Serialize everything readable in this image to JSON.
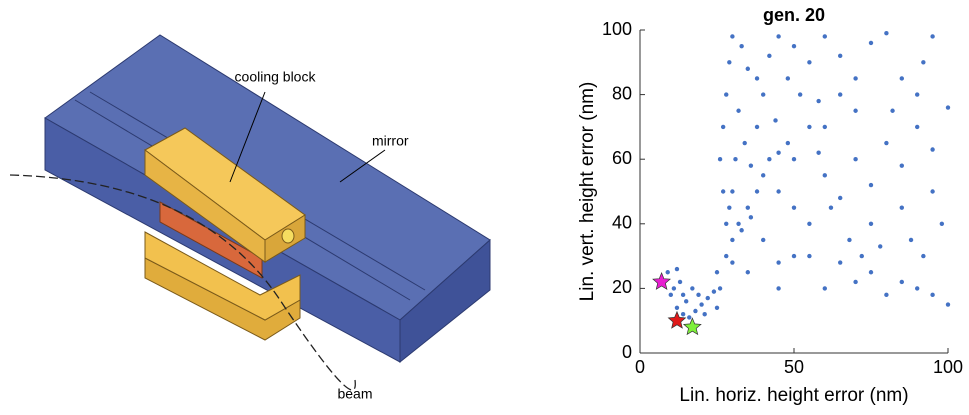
{
  "diagram": {
    "labels": [
      "cooling block",
      "mirror",
      "beam"
    ]
  },
  "chart_data": {
    "type": "scatter",
    "title": "gen. 20",
    "x_label": "Lin. horiz. height error (nm)",
    "y_label": "Lin. vert. height error (nm)",
    "xlim": [
      0,
      100
    ],
    "ylim": [
      0,
      100
    ],
    "xticks": [
      0,
      50,
      100
    ],
    "yticks": [
      0,
      20,
      40,
      60,
      80,
      100
    ],
    "grid": false,
    "series": [
      {
        "color": "#4472c4",
        "marker": "dot",
        "x": [
          12,
          14,
          15,
          16,
          18,
          20,
          22,
          14,
          17,
          19,
          24,
          26,
          13,
          11,
          21,
          25,
          25,
          28,
          30,
          32,
          35,
          38,
          40,
          42,
          45,
          48,
          30,
          33,
          36,
          28,
          27,
          26,
          27,
          28,
          29,
          30,
          33,
          35,
          32,
          34,
          38,
          40,
          42,
          45,
          50,
          55,
          60,
          65,
          70,
          75,
          80,
          40,
          50,
          60,
          70,
          80,
          90,
          100,
          55,
          65,
          75,
          85,
          95,
          60,
          70,
          85,
          90,
          75,
          85,
          95,
          35,
          45,
          55,
          65,
          75,
          85,
          95,
          100,
          60,
          70,
          80,
          90,
          45,
          50,
          45,
          50,
          55,
          52,
          48,
          58,
          62,
          68,
          72,
          78,
          88,
          92,
          98,
          82,
          92,
          95,
          65,
          58,
          44,
          38,
          36,
          30,
          29,
          31,
          9,
          10,
          12
        ],
        "values": [
          14,
          12,
          16,
          11,
          13,
          15,
          17,
          18,
          20,
          18,
          19,
          20,
          22,
          20,
          12,
          14,
          25,
          30,
          35,
          40,
          45,
          50,
          55,
          60,
          62,
          65,
          28,
          38,
          42,
          40,
          50,
          60,
          70,
          80,
          90,
          98,
          95,
          88,
          75,
          65,
          70,
          80,
          92,
          98,
          95,
          90,
          98,
          92,
          85,
          96,
          99,
          35,
          45,
          55,
          60,
          65,
          70,
          76,
          40,
          48,
          52,
          58,
          63,
          70,
          75,
          85,
          80,
          40,
          45,
          50,
          25,
          28,
          30,
          28,
          25,
          22,
          18,
          15,
          20,
          22,
          18,
          20,
          20,
          30,
          50,
          60,
          70,
          80,
          85,
          62,
          45,
          35,
          30,
          33,
          35,
          30,
          40,
          75,
          90,
          98,
          80,
          78,
          72,
          85,
          58,
          50,
          45,
          60,
          25,
          18,
          26
        ]
      },
      {
        "color": "#e81ed0",
        "marker": "star",
        "x": [
          7
        ],
        "values": [
          22
        ]
      },
      {
        "color": "#e01a1a",
        "marker": "star",
        "x": [
          12
        ],
        "values": [
          10
        ]
      },
      {
        "color": "#7ef03a",
        "marker": "star",
        "x": [
          17
        ],
        "values": [
          8
        ]
      }
    ]
  }
}
